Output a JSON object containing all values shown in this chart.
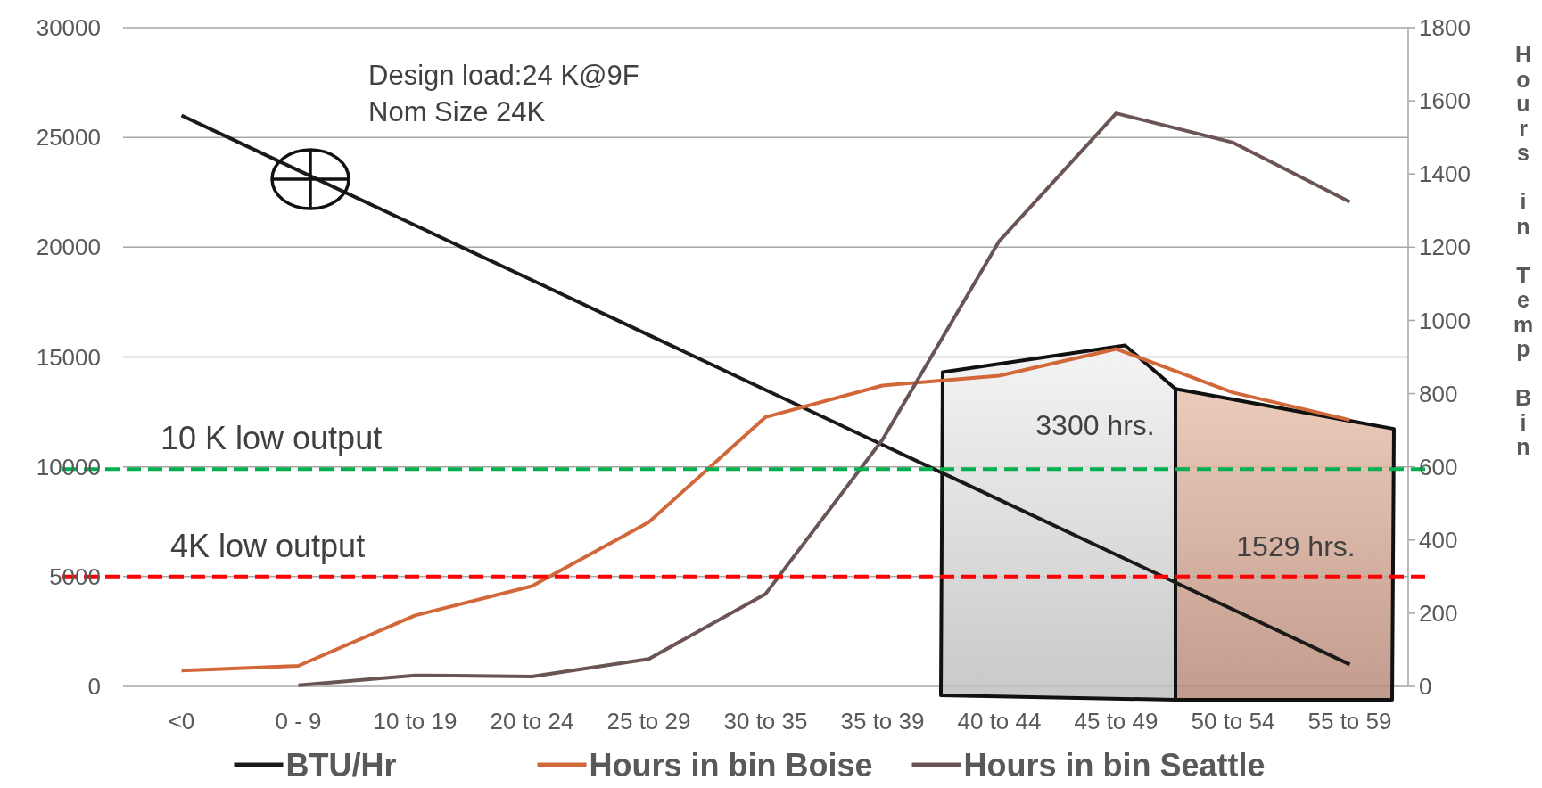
{
  "chart_data": {
    "type": "line",
    "categories": [
      "<0",
      "0 - 9",
      "10 to 19",
      "20 to 24",
      "25 to 29",
      "30 to 35",
      "35 to 39",
      "40 to 44",
      "45 to 49",
      "50 to 54",
      "55 to 59"
    ],
    "series": [
      {
        "name": "BTU/Hr",
        "color": "#1a1a1a",
        "values": [
          26000,
          23500,
          21000,
          18500,
          16000,
          13500,
          11000,
          8500,
          6000,
          3500,
          1000
        ]
      },
      {
        "name": "Hours in bin Boise",
        "color": "#d2683a",
        "axis": "y2",
        "values": [
          43,
          56,
          194,
          274,
          449,
          736,
          822,
          849,
          922,
          803,
          728
        ]
      },
      {
        "name": "Hours in bin Seattle",
        "color": "#6b5454",
        "axis": "y2",
        "values": [
          null,
          3,
          30,
          27,
          75,
          253,
          674,
          1217,
          1566,
          1486,
          1324
        ]
      }
    ],
    "ylim": [
      0,
      30000
    ],
    "yticks": [
      0,
      5000,
      10000,
      15000,
      20000,
      25000,
      30000
    ],
    "y2lim": [
      0,
      1800
    ],
    "y2ticks": [
      0,
      200,
      400,
      600,
      800,
      1000,
      1200,
      1400,
      1600,
      1800
    ],
    "y2label": "Hours in Temp Bin",
    "ref_lines": [
      {
        "axis": "y",
        "value": 9900,
        "label": "10 K low output",
        "color": "#00b050",
        "line_style": "dashed"
      },
      {
        "axis": "y",
        "value": 5000,
        "label": "4K low output",
        "color": "#ff0000",
        "line_style": "dashed"
      }
    ],
    "annotations": [
      "Design load:24 K@9F",
      "Nom Size 24K",
      "3300 hrs.",
      "1529 hrs."
    ],
    "grid": "y",
    "legend": "bottom",
    "marker": "none",
    "line_style": "solid"
  }
}
